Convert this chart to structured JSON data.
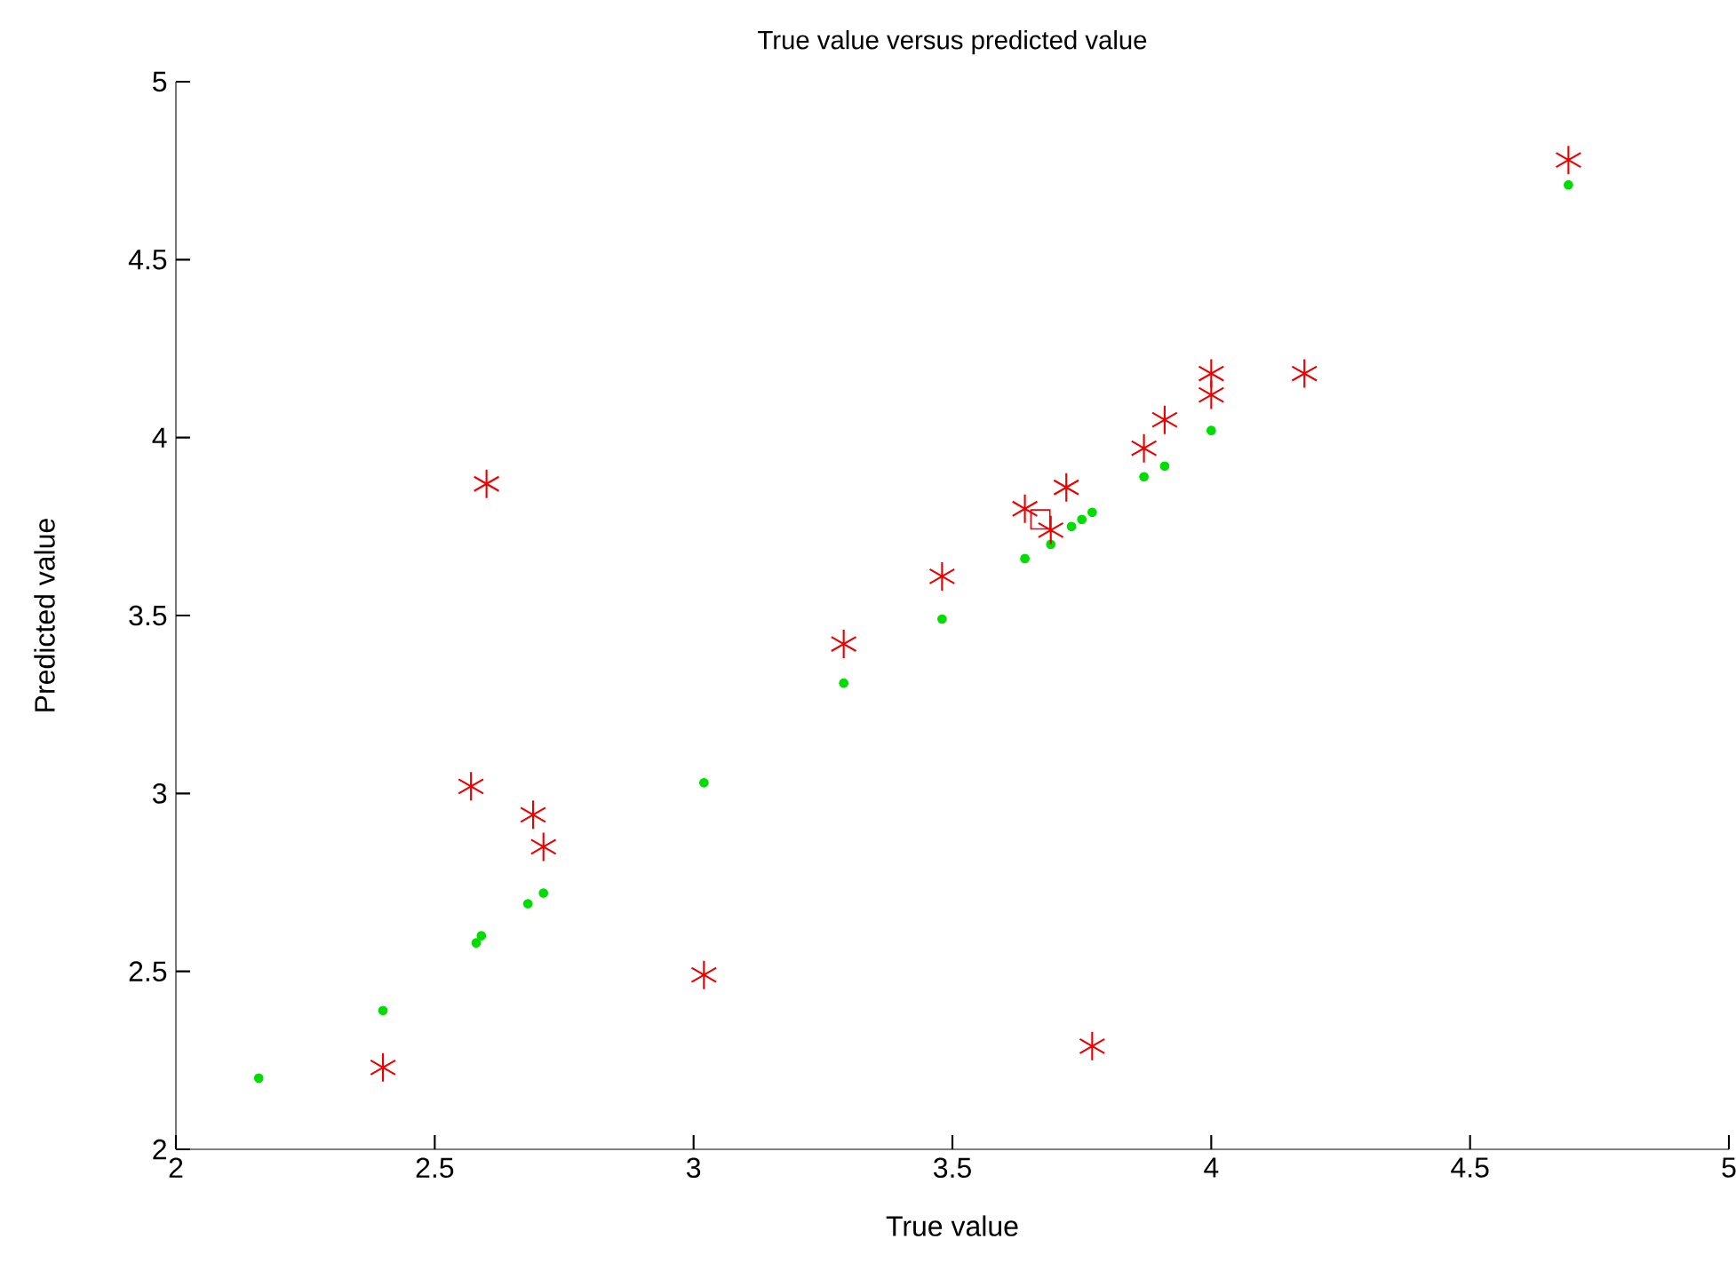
{
  "chart_data": {
    "type": "scatter",
    "title": "True value versus predicted value",
    "xlabel": "True value",
    "ylabel": "Predicted value",
    "xlim": [
      2,
      5
    ],
    "ylim": [
      2,
      5
    ],
    "xticks": [
      2,
      2.5,
      3,
      3.5,
      4,
      4.5,
      5
    ],
    "yticks": [
      2,
      2.5,
      3,
      3.5,
      4,
      4.5,
      5
    ],
    "grid": false,
    "series": [
      {
        "color": "#00dd00",
        "marker": "circle",
        "x": [
          2.16,
          2.4,
          2.58,
          2.59,
          2.68,
          2.71,
          3.02,
          3.29,
          3.48,
          3.64,
          3.69,
          3.73,
          3.75,
          3.77,
          3.87,
          3.91,
          4.0,
          4.69
        ],
        "values": [
          2.2,
          2.39,
          2.58,
          2.6,
          2.69,
          2.72,
          3.03,
          3.31,
          3.49,
          3.66,
          3.7,
          3.75,
          3.77,
          3.79,
          3.89,
          3.92,
          4.02,
          4.71
        ]
      },
      {
        "color": "#ee0000",
        "marker": "cross",
        "x": [
          2.4,
          2.57,
          2.6,
          2.69,
          2.71,
          3.02,
          3.29,
          3.48,
          3.64,
          3.69,
          3.72,
          3.77,
          3.87,
          3.91,
          4.0,
          4.0,
          4.18,
          4.69
        ],
        "values": [
          2.23,
          3.02,
          3.87,
          2.94,
          2.85,
          2.49,
          3.42,
          3.61,
          3.8,
          3.74,
          3.86,
          2.29,
          3.97,
          4.05,
          4.12,
          4.18,
          4.18,
          4.78
        ]
      },
      {
        "color": "#ee0000",
        "marker": "square",
        "x": [
          3.67
        ],
        "values": [
          3.77
        ]
      }
    ]
  }
}
